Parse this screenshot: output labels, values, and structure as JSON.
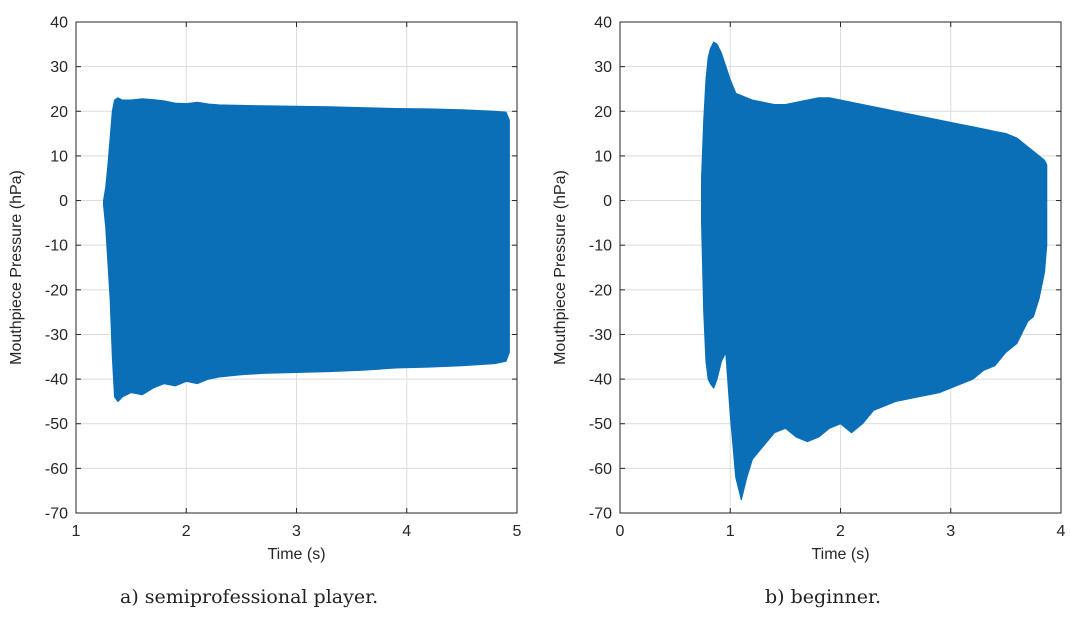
{
  "chart_data": [
    {
      "type": "area",
      "subplot_caption": "a) semiprofessional player.",
      "xlabel": "Time (s)",
      "ylabel": "Mouthpiece Pressure (hPa)",
      "xlim": [
        1,
        5
      ],
      "ylim": [
        -70,
        40
      ],
      "xticks": [
        1,
        2,
        3,
        4,
        5
      ],
      "yticks": [
        -70,
        -60,
        -50,
        -40,
        -30,
        -20,
        -10,
        0,
        10,
        20,
        30,
        40
      ],
      "grid": true,
      "color": "#0b6fb8",
      "series": [
        {
          "x": [
            1.25,
            1.27,
            1.29,
            1.31,
            1.33,
            1.35,
            1.38,
            1.42,
            1.5,
            1.6,
            1.7,
            1.8,
            1.9,
            2.0,
            2.1,
            2.2,
            2.3,
            2.5,
            2.7,
            3.0,
            3.3,
            3.6,
            3.9,
            4.2,
            4.5,
            4.8,
            4.9,
            4.93
          ],
          "upper": [
            0,
            3,
            8,
            14,
            20,
            22.5,
            23,
            22.5,
            22.5,
            22.8,
            22.6,
            22.3,
            21.8,
            21.7,
            22.0,
            21.6,
            21.4,
            21.3,
            21.2,
            21.1,
            21.0,
            20.8,
            20.6,
            20.5,
            20.3,
            20.0,
            19.8,
            18
          ],
          "lower": [
            -1,
            -6,
            -14,
            -22,
            -35,
            -44,
            -45,
            -44,
            -43,
            -43.5,
            -42,
            -41,
            -41.5,
            -40.5,
            -41,
            -40,
            -39.5,
            -39,
            -38.7,
            -38.5,
            -38.3,
            -38,
            -37.5,
            -37.3,
            -37,
            -36.5,
            -36,
            -34
          ]
        }
      ]
    },
    {
      "type": "area",
      "subplot_caption": "b) beginner.",
      "xlabel": "Time (s)",
      "ylabel": "Mouthpiece Pressure (hPa)",
      "xlim": [
        0,
        4
      ],
      "ylim": [
        -70,
        40
      ],
      "xticks": [
        0,
        1,
        2,
        3,
        4
      ],
      "yticks": [
        -70,
        -60,
        -50,
        -40,
        -30,
        -20,
        -10,
        0,
        10,
        20,
        30,
        40
      ],
      "grid": true,
      "color": "#0b6fb8",
      "series": [
        {
          "x": [
            0.74,
            0.76,
            0.78,
            0.8,
            0.82,
            0.85,
            0.88,
            0.92,
            0.96,
            1.0,
            1.05,
            1.1,
            1.15,
            1.2,
            1.3,
            1.4,
            1.5,
            1.6,
            1.7,
            1.8,
            1.9,
            2.0,
            2.1,
            2.2,
            2.3,
            2.5,
            2.7,
            2.9,
            3.1,
            3.2,
            3.3,
            3.4,
            3.5,
            3.6,
            3.7,
            3.75,
            3.8,
            3.85,
            3.87
          ],
          "upper": [
            5,
            18,
            27,
            32,
            34,
            35.5,
            35,
            33,
            30,
            27,
            24,
            23.5,
            23,
            22.5,
            22,
            21.5,
            21.5,
            22,
            22.5,
            23,
            23,
            22.5,
            22,
            21.5,
            21,
            20,
            19,
            18,
            17,
            16.5,
            16,
            15.5,
            15,
            14,
            12,
            11,
            10,
            9,
            8
          ],
          "lower": [
            -5,
            -25,
            -36,
            -40,
            -41,
            -42,
            -40,
            -36,
            -34,
            -48,
            -62,
            -67,
            -62,
            -58,
            -55,
            -52,
            -51,
            -53,
            -54,
            -53,
            -51,
            -50,
            -52,
            -50,
            -47,
            -45,
            -44,
            -43,
            -41,
            -40,
            -38,
            -37,
            -34,
            -32,
            -27,
            -26,
            -22,
            -16,
            -10
          ]
        }
      ]
    }
  ]
}
